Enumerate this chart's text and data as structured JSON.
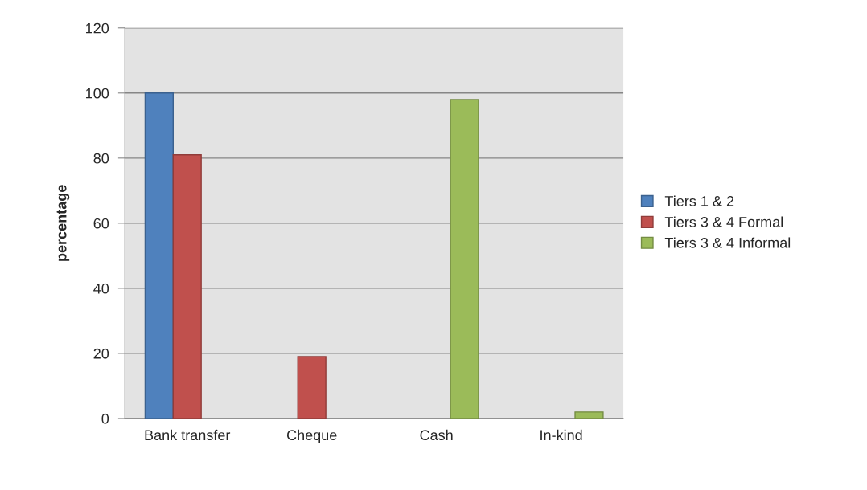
{
  "chart_data": {
    "type": "bar",
    "ylabel": "percentage",
    "categories": [
      "Bank transfer",
      "Cheque",
      "Cash",
      "In-kind"
    ],
    "series": [
      {
        "name": "Tiers 1 & 2",
        "color": "#4f81bd",
        "values": [
          100,
          null,
          null,
          null
        ]
      },
      {
        "name": "Tiers 3 & 4 Formal",
        "color": "#c0504d",
        "values": [
          81,
          19,
          null,
          null
        ]
      },
      {
        "name": "Tiers 3 & 4 Informal",
        "color": "#9bbb59",
        "values": [
          null,
          null,
          98,
          2
        ]
      }
    ],
    "ylim": [
      0,
      120
    ],
    "yticks": [
      0,
      20,
      40,
      60,
      80,
      100,
      120
    ],
    "grid": "y",
    "legend": "right"
  }
}
